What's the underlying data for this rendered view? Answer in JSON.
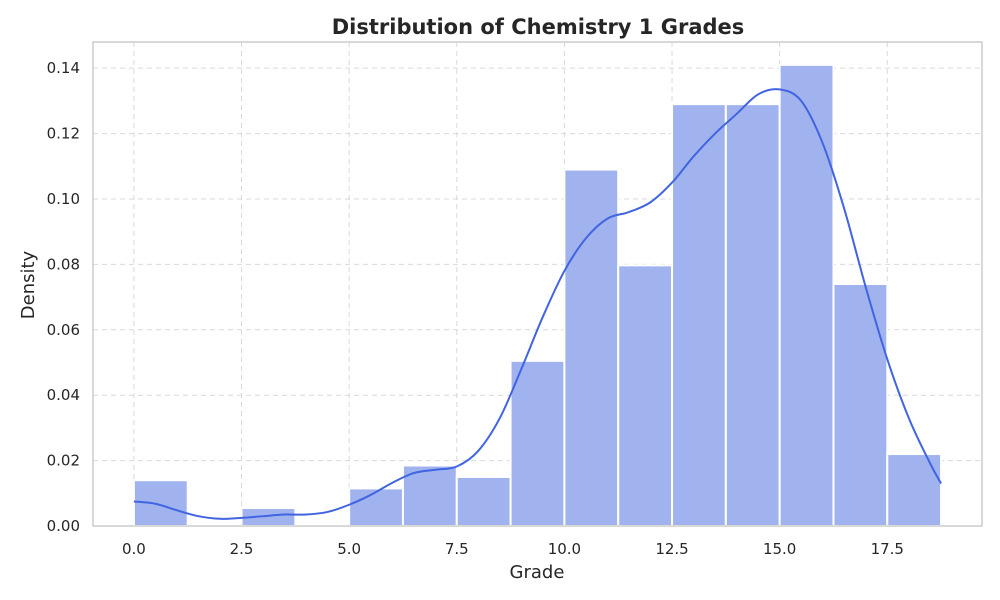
{
  "chart_data": {
    "type": "bar",
    "title": "Distribution of Chemistry 1 Grades",
    "xlabel": "Grade",
    "ylabel": "Density",
    "xlim": [
      -0.95,
      19.7
    ],
    "ylim": [
      0,
      0.148
    ],
    "xticks": [
      0.0,
      2.5,
      5.0,
      7.5,
      10.0,
      12.5,
      15.0,
      17.5
    ],
    "xtick_labels": [
      "0.0",
      "2.5",
      "5.0",
      "7.5",
      "10.0",
      "12.5",
      "15.0",
      "17.5"
    ],
    "yticks": [
      0.0,
      0.02,
      0.04,
      0.06,
      0.08,
      0.1,
      0.12,
      0.14
    ],
    "ytick_labels": [
      "0.00",
      "0.02",
      "0.04",
      "0.06",
      "0.08",
      "0.10",
      "0.12",
      "0.14"
    ],
    "grid": true,
    "bins": [
      {
        "x0": 0.0,
        "x1": 1.25,
        "density": 0.014
      },
      {
        "x0": 1.25,
        "x1": 2.5,
        "density": 0.0
      },
      {
        "x0": 2.5,
        "x1": 3.75,
        "density": 0.0055
      },
      {
        "x0": 3.75,
        "x1": 5.0,
        "density": 0.0
      },
      {
        "x0": 5.0,
        "x1": 6.25,
        "density": 0.0115
      },
      {
        "x0": 6.25,
        "x1": 7.5,
        "density": 0.0185
      },
      {
        "x0": 7.5,
        "x1": 8.75,
        "density": 0.015
      },
      {
        "x0": 8.75,
        "x1": 10.0,
        "density": 0.0505
      },
      {
        "x0": 10.0,
        "x1": 11.25,
        "density": 0.109
      },
      {
        "x0": 11.25,
        "x1": 12.5,
        "density": 0.0797
      },
      {
        "x0": 12.5,
        "x1": 13.75,
        "density": 0.129
      },
      {
        "x0": 13.75,
        "x1": 15.0,
        "density": 0.129
      },
      {
        "x0": 15.0,
        "x1": 16.25,
        "density": 0.141
      },
      {
        "x0": 16.25,
        "x1": 17.5,
        "density": 0.074
      },
      {
        "x0": 17.5,
        "x1": 18.75,
        "density": 0.022
      }
    ],
    "kde": {
      "x": [
        0.0,
        0.5,
        1.0,
        1.5,
        2.0,
        2.5,
        3.0,
        3.5,
        4.0,
        4.5,
        5.0,
        5.5,
        6.0,
        6.5,
        7.0,
        7.5,
        8.0,
        8.5,
        9.0,
        9.5,
        10.0,
        10.5,
        11.0,
        11.5,
        12.0,
        12.5,
        13.0,
        13.5,
        14.0,
        14.5,
        15.0,
        15.5,
        16.0,
        16.5,
        17.0,
        17.5,
        18.0,
        18.5,
        18.75
      ],
      "y": [
        0.0075,
        0.0068,
        0.0048,
        0.003,
        0.0022,
        0.0025,
        0.003,
        0.0035,
        0.0035,
        0.0043,
        0.0065,
        0.0095,
        0.0132,
        0.0162,
        0.0172,
        0.0182,
        0.023,
        0.033,
        0.048,
        0.064,
        0.078,
        0.088,
        0.094,
        0.096,
        0.099,
        0.105,
        0.113,
        0.12,
        0.126,
        0.132,
        0.1335,
        0.13,
        0.117,
        0.097,
        0.073,
        0.051,
        0.033,
        0.019,
        0.013
      ]
    },
    "colors": {
      "bar_fill": "#a0b3ee",
      "line": "#4164e1"
    }
  }
}
